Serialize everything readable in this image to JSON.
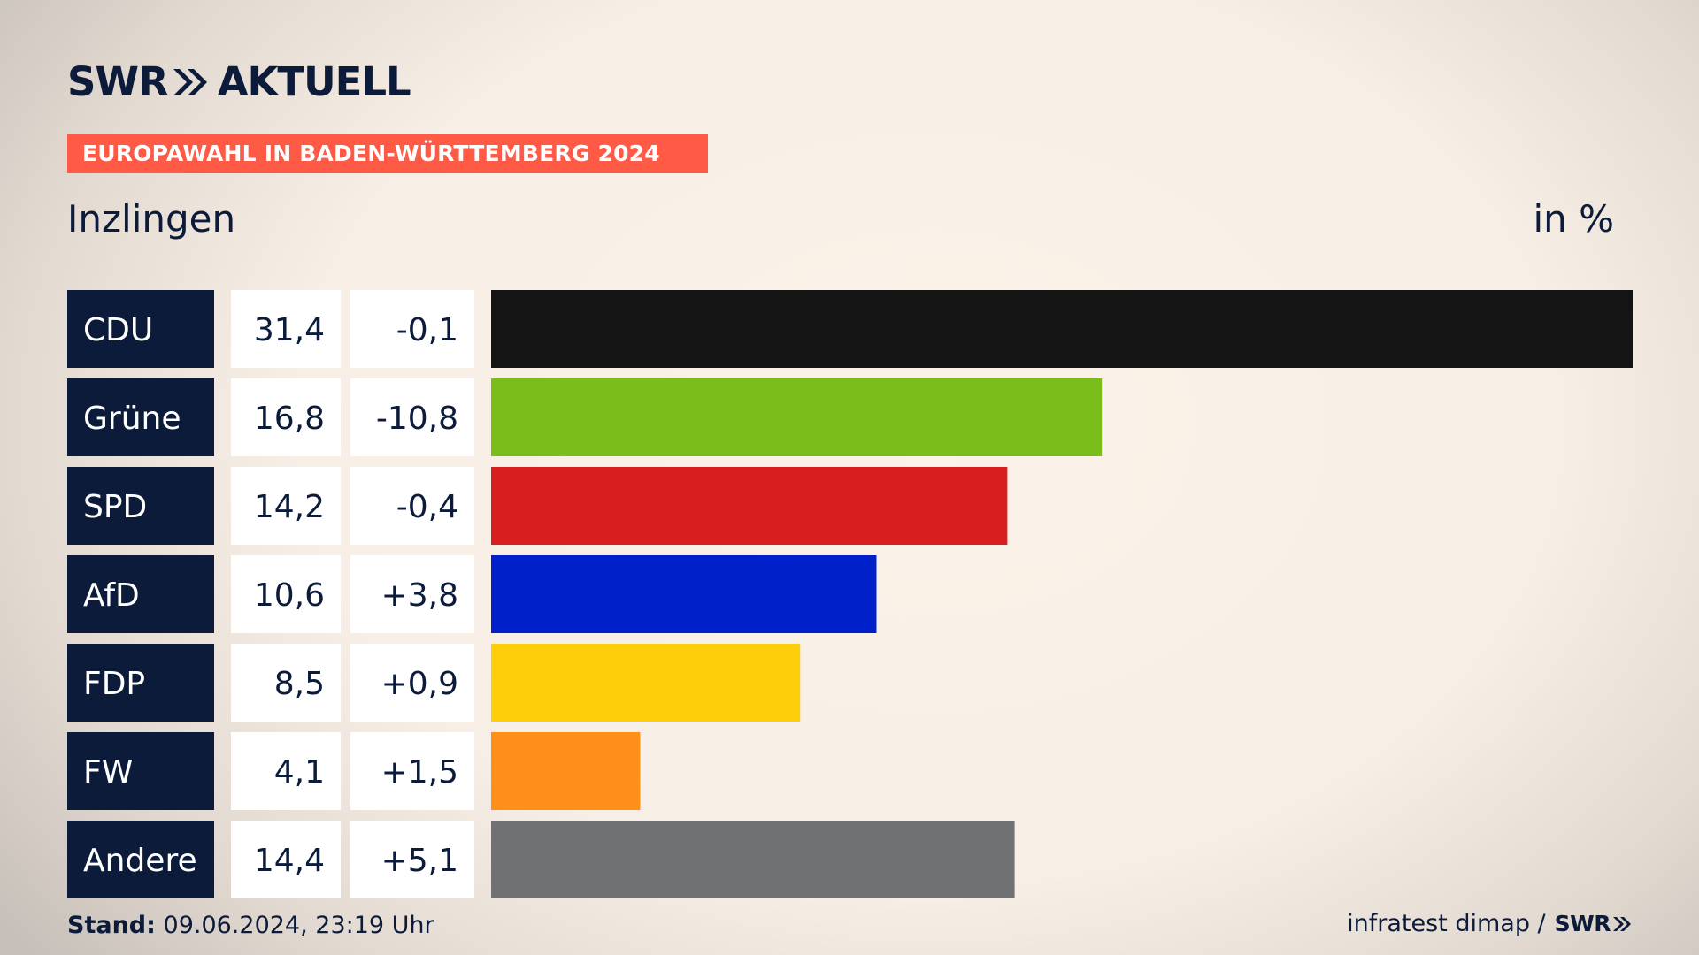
{
  "brand": {
    "logo_left": "SWR",
    "logo_right": "AKTUELL"
  },
  "banner": "EUROPAWAHL IN BADEN-WÜRTTEMBERG 2024",
  "place": "Inzlingen",
  "unit": "in %",
  "colors": {
    "navy": "#0c1b3a",
    "banner": "#ff5a46"
  },
  "chart_data": {
    "type": "bar",
    "orientation": "horizontal",
    "xlim": [
      0,
      31.4
    ],
    "categories": [
      "CDU",
      "Grüne",
      "SPD",
      "AfD",
      "FDP",
      "FW",
      "Andere"
    ],
    "values": [
      31.4,
      16.8,
      14.2,
      10.6,
      8.5,
      4.1,
      14.4
    ],
    "value_labels": [
      "31,4",
      "16,8",
      "14,2",
      "10,6",
      "8,5",
      "4,1",
      "14,4"
    ],
    "change_labels": [
      "-0,1",
      "-10,8",
      "-0,4",
      "+3,8",
      "+0,9",
      "+1,5",
      "+5,1"
    ],
    "bar_colors": [
      "#141414",
      "#7bbe1c",
      "#d81f1f",
      "#0021c9",
      "#ffce0a",
      "#ff8f18",
      "#6f7172"
    ]
  },
  "footer": {
    "stand_label": "Stand:",
    "stand_value": "09.06.2024, 23:19 Uhr",
    "source": "infratest dimap /",
    "source_logo": "SWR"
  }
}
